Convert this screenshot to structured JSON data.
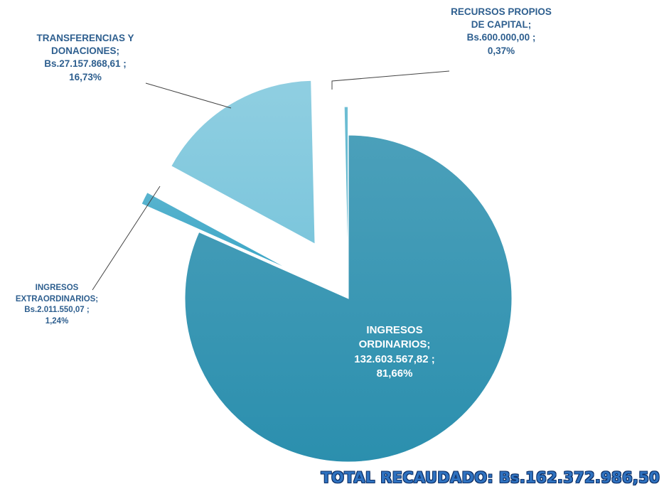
{
  "chart_data": {
    "type": "pie",
    "categories": [
      "INGRESOS ORDINARIOS;",
      "INGRESOS EXTRAORDINARIOS;",
      "TRANSFERENCIAS Y DONACIONES;",
      "RECURSOS PROPIOS DE CAPITAL;"
    ],
    "values": [
      81.66,
      1.24,
      16.73,
      0.37
    ],
    "value_labels": [
      "81,66%",
      "1,24%",
      "16,73%",
      "0,37%"
    ],
    "amount_labels": [
      "132.603.567,82 ;",
      "Bs.2.011.550,07  ;",
      "Bs.27.157.868,61 ;",
      "Bs.600.000,00 ;"
    ],
    "colors": [
      "#2b8fae",
      "#3ba6c6",
      "#7cc6dc",
      "#55b3cc"
    ],
    "total": "TOTAL RECAUDADO: Bs.162.372.986,50"
  }
}
